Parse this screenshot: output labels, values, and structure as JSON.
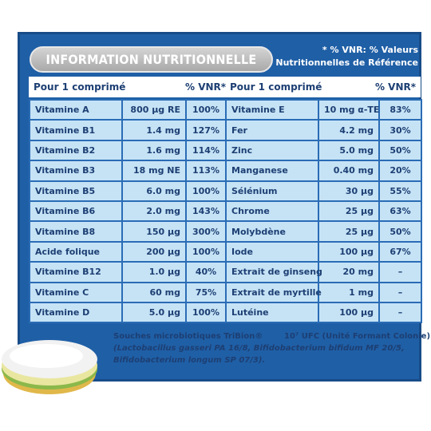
{
  "header": {
    "title": "INFORMATION NUTRITIONNELLE",
    "note_line1": "* % VNR: % Valeurs",
    "note_line2": "Nutritionnelles de Référence"
  },
  "table": {
    "columns": [
      "Pour 1 comprimé",
      "% VNR*",
      "Pour 1 comprimé",
      "% VNR*"
    ],
    "rows": [
      [
        "Vitamine A",
        "800 µg RE",
        "100%",
        "Vitamine E",
        "10 mg α-TE",
        "83%"
      ],
      [
        "Vitamine B1",
        "1.4 mg",
        "127%",
        "Fer",
        "4.2 mg",
        "30%"
      ],
      [
        "Vitamine B2",
        "1.6 mg",
        "114%",
        "Zinc",
        "5.0 mg",
        "50%"
      ],
      [
        "Vitamine B3",
        "18 mg NE",
        "113%",
        "Manganese",
        "0.40 mg",
        "20%"
      ],
      [
        "Vitamine B5",
        "6.0 mg",
        "100%",
        "Sélénium",
        "30 µg",
        "55%"
      ],
      [
        "Vitamine B6",
        "2.0 mg",
        "143%",
        "Chrome",
        "25 µg",
        "63%"
      ],
      [
        "Vitamine B8",
        "150 µg",
        "300%",
        "Molybdène",
        "25 µg",
        "50%"
      ],
      [
        "Acide folique",
        "200 µg",
        "100%",
        "Iode",
        "100 µg",
        "67%"
      ],
      [
        "Vitamine B12",
        "1.0 µg",
        "40%",
        "Extrait de ginseng",
        "20 mg",
        "–"
      ],
      [
        "Vitamine C",
        "60 mg",
        "75%",
        "Extrait de myrtille",
        "1 mg",
        "–"
      ],
      [
        "Vitamine D",
        "5.0 µg",
        "100%",
        "Lutéine",
        "100 µg",
        "–"
      ]
    ]
  },
  "footer": {
    "strains": "Souches microbiotiques TriBion®",
    "count": "10⁷ UFC (Unité Formant Colonie)",
    "line2": "(Lactobacillus gasseri PA 16/8, Bifidobacterium bifidum MF 20/5,",
    "line3": "Bifidobacterium longum SP 07/3)."
  }
}
